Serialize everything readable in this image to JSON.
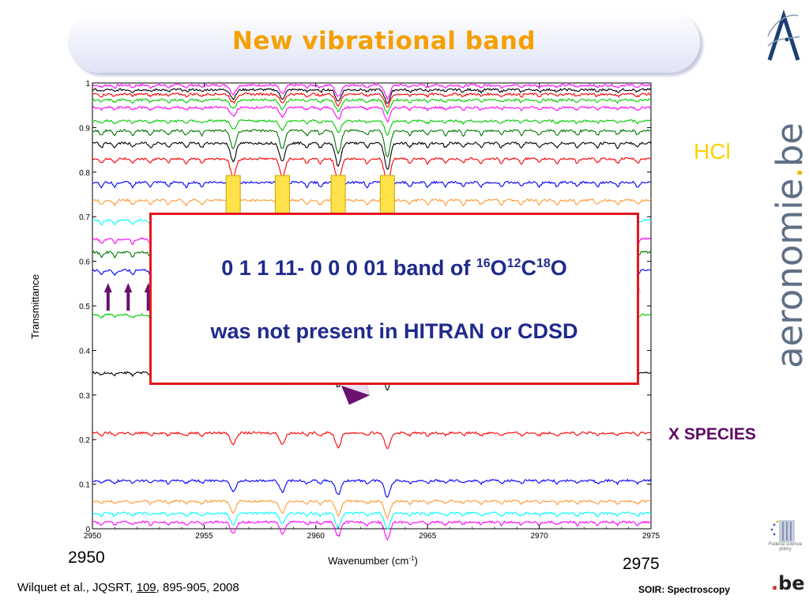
{
  "slide": {
    "title": "New vibrational band",
    "hcl_label": "HCl",
    "xspecies_label": "X SPECIES",
    "big_tick_left": "2950",
    "big_tick_right": "2975",
    "citation_prefix": "Wilquet et al., JQSRT, ",
    "citation_volume": "109",
    "citation_suffix": ", 895-905, 2008",
    "footer": "SOIR: Spectroscopy",
    "brand_text": "aeronomie",
    "brand_dot": ".",
    "brand_suffix": "be",
    "be_logo_dot": ".",
    "be_logo_text": "be",
    "fed_text": "Federal science policy"
  },
  "box": {
    "line1_prefix": "0 1 1 11- 0 0 0 01 band of ",
    "iso1_mass": "16",
    "iso1_el": "O",
    "iso2_mass": "12",
    "iso2_el": "C",
    "iso3_mass": "18",
    "iso3_el": "O",
    "line2": "was not present in HITRAN or CDSD"
  },
  "colors": {
    "title": "#f5a000",
    "hcl": "#ffd200",
    "xspecies": "#5e0a64",
    "box_border": "#e4171d",
    "box_text": "#1f2a8c"
  },
  "chart_data": {
    "type": "line",
    "xlabel": "Wavenumber (cm",
    "xlabel_sup": "-1",
    "xlabel_suffix": ")",
    "ylabel": "Transmittance",
    "xlim": [
      2950,
      2975
    ],
    "ylim": [
      0,
      1
    ],
    "xticks": [
      "2950",
      "2955",
      "2960",
      "2965",
      "2970",
      "2975"
    ],
    "yticks": [
      "0",
      "0.1",
      "0.2",
      "0.3",
      "0.4",
      "0.5",
      "0.6",
      "0.7",
      "0.8",
      "0.9",
      "1"
    ],
    "grid": false,
    "hcl_lines_cm": [
      2956.3,
      2958.5,
      2961.0,
      2963.2
    ],
    "series": [
      {
        "color": "#ff00ff",
        "baseline": 0.995
      },
      {
        "color": "#000000",
        "baseline": 0.985
      },
      {
        "color": "#ff0000",
        "baseline": 0.975
      },
      {
        "color": "#00cc00",
        "baseline": 0.962
      },
      {
        "color": "#ff00ff",
        "baseline": 0.945
      },
      {
        "color": "#00cc00",
        "baseline": 0.915
      },
      {
        "color": "#007700",
        "baseline": 0.893
      },
      {
        "color": "#000000",
        "baseline": 0.865
      },
      {
        "color": "#ff0000",
        "baseline": 0.83
      },
      {
        "color": "#0000ff",
        "baseline": 0.777
      },
      {
        "color": "#ff9933",
        "baseline": 0.737
      },
      {
        "color": "#00ffff",
        "baseline": 0.692
      },
      {
        "color": "#ff00ff",
        "baseline": 0.65
      },
      {
        "color": "#007700",
        "baseline": 0.62
      },
      {
        "color": "#0000ff",
        "baseline": 0.58
      },
      {
        "color": "#00cc00",
        "baseline": 0.48
      },
      {
        "color": "#000000",
        "baseline": 0.35
      },
      {
        "color": "#ff0000",
        "baseline": 0.215
      },
      {
        "color": "#0000ff",
        "baseline": 0.108
      },
      {
        "color": "#ff9933",
        "baseline": 0.062
      },
      {
        "color": "#00ffff",
        "baseline": 0.035
      },
      {
        "color": "#ff00ff",
        "baseline": 0.015
      }
    ]
  }
}
